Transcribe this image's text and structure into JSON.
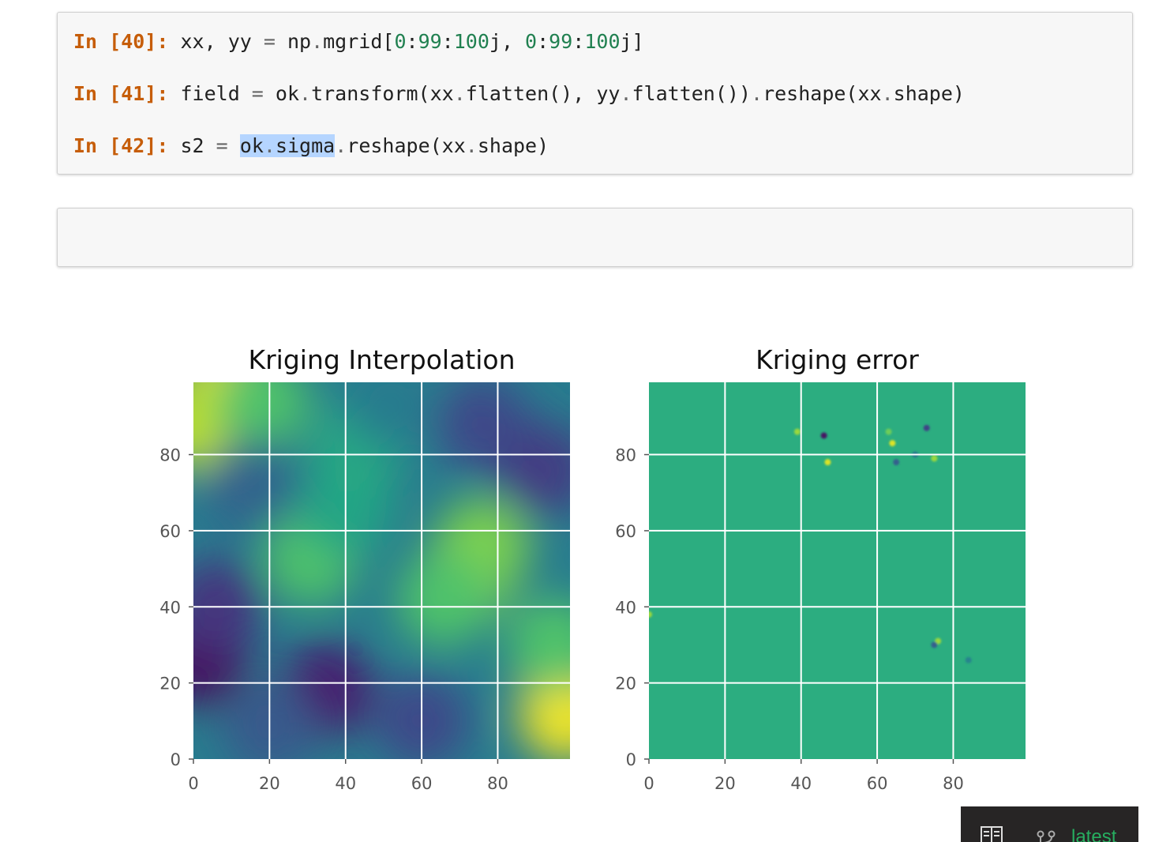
{
  "notebook": {
    "cells": [
      {
        "prompt": "In [40]:",
        "code": [
          {
            "t": "xx, yy ",
            "c": "plain"
          },
          {
            "t": "=",
            "c": "op"
          },
          {
            "t": " np",
            "c": "plain"
          },
          {
            "t": ".",
            "c": "op"
          },
          {
            "t": "mgrid[",
            "c": "plain"
          },
          {
            "t": "0",
            "c": "num"
          },
          {
            "t": ":",
            "c": "plain"
          },
          {
            "t": "99",
            "c": "num"
          },
          {
            "t": ":",
            "c": "plain"
          },
          {
            "t": "100",
            "c": "num"
          },
          {
            "t": "j, ",
            "c": "plain"
          },
          {
            "t": "0",
            "c": "num"
          },
          {
            "t": ":",
            "c": "plain"
          },
          {
            "t": "99",
            "c": "num"
          },
          {
            "t": ":",
            "c": "plain"
          },
          {
            "t": "100",
            "c": "num"
          },
          {
            "t": "j]",
            "c": "plain"
          }
        ]
      },
      {
        "prompt": "In [41]:",
        "code": [
          {
            "t": "field ",
            "c": "plain"
          },
          {
            "t": "=",
            "c": "op"
          },
          {
            "t": " ok",
            "c": "plain"
          },
          {
            "t": ".",
            "c": "op"
          },
          {
            "t": "transform(xx",
            "c": "plain"
          },
          {
            "t": ".",
            "c": "op"
          },
          {
            "t": "flatten(), yy",
            "c": "plain"
          },
          {
            "t": ".",
            "c": "op"
          },
          {
            "t": "flatten())",
            "c": "plain"
          },
          {
            "t": ".",
            "c": "op"
          },
          {
            "t": "reshape(xx",
            "c": "plain"
          },
          {
            "t": ".",
            "c": "op"
          },
          {
            "t": "shape)",
            "c": "plain"
          }
        ]
      },
      {
        "prompt": "In [42]:",
        "code": [
          {
            "t": "s2 ",
            "c": "plain"
          },
          {
            "t": "=",
            "c": "op"
          },
          {
            "t": " ",
            "c": "plain"
          },
          {
            "t": "ok",
            "c": "hl"
          },
          {
            "t": ".",
            "c": "hl-op"
          },
          {
            "t": "sigma",
            "c": "hl"
          },
          {
            "t": ".",
            "c": "op"
          },
          {
            "t": "reshape(xx",
            "c": "plain"
          },
          {
            "t": ".",
            "c": "op"
          },
          {
            "t": "shape)",
            "c": "plain"
          }
        ]
      }
    ],
    "selected_text": "ok.sigma",
    "empty_cell_value": ""
  },
  "chart_data": [
    {
      "type": "heatmap",
      "title": "Kriging Interpolation",
      "xlabel": "",
      "ylabel": "",
      "xlim": [
        0,
        99
      ],
      "ylim": [
        0,
        99
      ],
      "xticks": [
        0,
        20,
        40,
        60,
        80
      ],
      "yticks": [
        0,
        20,
        40,
        60,
        80
      ],
      "grid": true,
      "colormap": "viridis",
      "value_range": [
        0,
        1
      ],
      "features": [
        {
          "x": 8,
          "y": 96,
          "value": 0.97
        },
        {
          "x": 2,
          "y": 88,
          "value": 0.9
        },
        {
          "x": 18,
          "y": 94,
          "value": 0.72
        },
        {
          "x": 31,
          "y": 53,
          "value": 0.72
        },
        {
          "x": 40,
          "y": 66,
          "value": 0.58
        },
        {
          "x": 43,
          "y": 82,
          "value": 0.6
        },
        {
          "x": 72,
          "y": 48,
          "value": 0.82
        },
        {
          "x": 76,
          "y": 56,
          "value": 0.8
        },
        {
          "x": 66,
          "y": 42,
          "value": 0.72
        },
        {
          "x": 98,
          "y": 12,
          "value": 0.98
        },
        {
          "x": 95,
          "y": 30,
          "value": 0.72
        },
        {
          "x": 2,
          "y": 26,
          "value": 0.03
        },
        {
          "x": 6,
          "y": 40,
          "value": 0.15
        },
        {
          "x": 35,
          "y": 18,
          "value": 0.08
        },
        {
          "x": 20,
          "y": 8,
          "value": 0.28
        },
        {
          "x": 60,
          "y": 10,
          "value": 0.22
        },
        {
          "x": 76,
          "y": 88,
          "value": 0.22
        },
        {
          "x": 92,
          "y": 76,
          "value": 0.18
        },
        {
          "x": 15,
          "y": 72,
          "value": 0.32
        },
        {
          "x": 52,
          "y": 94,
          "value": 0.42
        }
      ]
    },
    {
      "type": "heatmap",
      "title": "Kriging error",
      "xlabel": "",
      "ylabel": "",
      "xlim": [
        0,
        99
      ],
      "ylim": [
        0,
        99
      ],
      "xticks": [
        0,
        20,
        40,
        60,
        80
      ],
      "yticks": [
        0,
        20,
        40,
        60,
        80
      ],
      "grid": true,
      "colormap": "viridis",
      "background_value": 0.62,
      "features": [
        {
          "x": 46,
          "y": 85,
          "value": 0.05
        },
        {
          "x": 47,
          "y": 78,
          "value": 0.95
        },
        {
          "x": 39,
          "y": 86,
          "value": 0.85
        },
        {
          "x": 64,
          "y": 83,
          "value": 0.95
        },
        {
          "x": 63,
          "y": 86,
          "value": 0.78
        },
        {
          "x": 65,
          "y": 78,
          "value": 0.3
        },
        {
          "x": 73,
          "y": 87,
          "value": 0.2
        },
        {
          "x": 75,
          "y": 79,
          "value": 0.85
        },
        {
          "x": 70,
          "y": 80,
          "value": 0.4
        },
        {
          "x": 76,
          "y": 31,
          "value": 0.85
        },
        {
          "x": 75,
          "y": 30,
          "value": 0.3
        },
        {
          "x": 84,
          "y": 26,
          "value": 0.45
        },
        {
          "x": 0,
          "y": 38,
          "value": 0.85
        }
      ]
    }
  ],
  "rtd_badge": {
    "version_label": "latest",
    "book_icon": "book-icon",
    "branch_icon": "git-branch-icon",
    "accent": "#27ae60",
    "background": "#272525"
  }
}
